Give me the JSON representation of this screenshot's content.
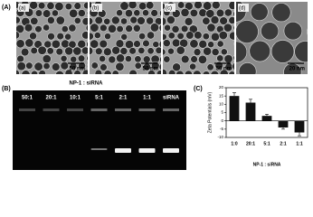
{
  "figure": {
    "panel_a": {
      "label": "(A)",
      "images": [
        {
          "label": "(a)",
          "scale": "50 nm"
        },
        {
          "label": "(b)",
          "scale": "50 nm"
        },
        {
          "label": "(c)",
          "scale": "50 nm"
        },
        {
          "label": "(d)",
          "scale": "20 nm"
        }
      ]
    },
    "panel_b": {
      "label": "(B)",
      "title": "NP-1 : siRNA",
      "lanes": [
        "50:1",
        "20:1",
        "10:1",
        "5:1",
        "2:1",
        "1:1",
        "siRNA"
      ]
    },
    "panel_c": {
      "label": "(C)"
    }
  },
  "chart_data": {
    "type": "bar",
    "y_label": "Zeta Potentials (mV)",
    "x_label": "NP-1 : siRNA",
    "categories": [
      "1:0",
      "20:1",
      "5:1",
      "2:1",
      "1:1"
    ],
    "values": [
      15,
      11,
      3,
      -4,
      -7
    ],
    "errors": [
      2,
      2,
      1,
      1,
      2
    ],
    "color": "#111111",
    "ylim": [
      -10,
      20
    ],
    "yticks": [
      -10,
      -5,
      0,
      5,
      10,
      15,
      20
    ]
  }
}
